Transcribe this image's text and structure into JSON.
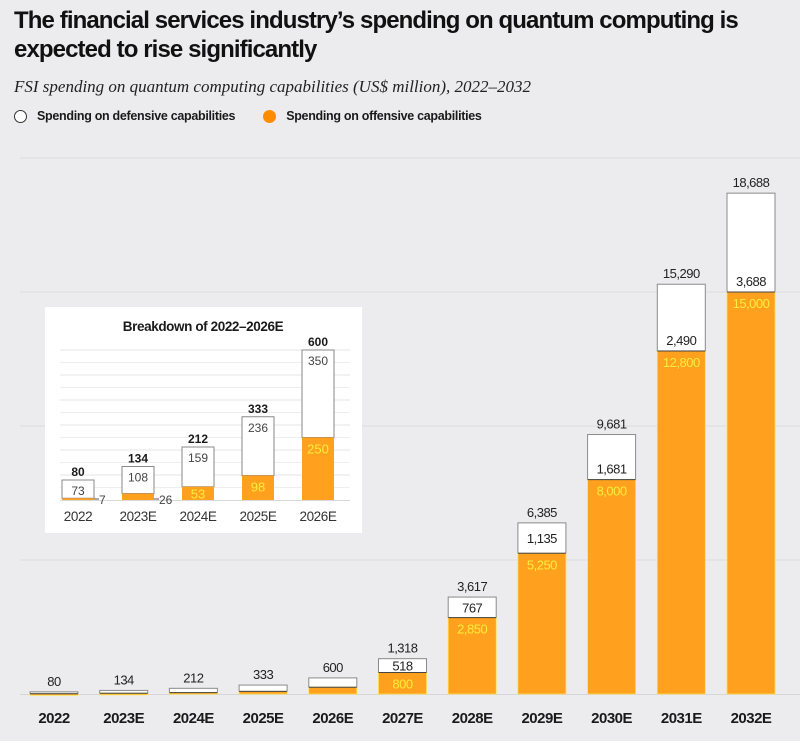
{
  "header": {
    "title": "The financial services industry’s spending on quantum computing is expected to rise significantly",
    "subtitle": "FSI spending on quantum computing capabilities (US$ million), 2022–2032"
  },
  "colors": {
    "offensive": "#ffa01e",
    "defensive": "#ffffff",
    "offensive_label": "#ffee3a",
    "legend_offensive": "#ff8c00"
  },
  "legend": [
    {
      "label": "Spending on defensive capabilities",
      "key": "defensive"
    },
    {
      "label": "Spending on offensive capabilities",
      "key": "offensive"
    }
  ],
  "chart_data": [
    {
      "type": "bar",
      "stacked": true,
      "title": "FSI spending on quantum computing capabilities (US$ million), 2022–2032",
      "xlabel": "",
      "ylabel": "US$ million",
      "ylim": [
        0,
        20000
      ],
      "grid": true,
      "legend_position": "top-left",
      "categories": [
        "2022",
        "2023E",
        "2024E",
        "2025E",
        "2026E",
        "2027E",
        "2028E",
        "2029E",
        "2030E",
        "2031E",
        "2032E"
      ],
      "series": [
        {
          "name": "Spending on offensive capabilities",
          "values": [
            7,
            26,
            53,
            98,
            250,
            800,
            2850,
            5250,
            8000,
            12800,
            15000
          ]
        },
        {
          "name": "Spending on defensive capabilities",
          "values": [
            73,
            108,
            159,
            236,
            350,
            518,
            767,
            1135,
            1681,
            2490,
            3688
          ]
        }
      ],
      "totals": [
        80,
        134,
        212,
        333,
        600,
        1318,
        3617,
        6385,
        9681,
        15290,
        18688
      ],
      "total_labels": [
        "80",
        "134",
        "212",
        "333",
        "600",
        "1,318",
        "3,617",
        "6,385",
        "9,681",
        "15,290",
        "18,688"
      ],
      "segment_labels_shown_from_index": 5,
      "offensive_labels": [
        "7",
        "26",
        "53",
        "98",
        "250",
        "800",
        "2,850",
        "5,250",
        "8,000",
        "12,800",
        "15,000"
      ],
      "defensive_labels": [
        "73",
        "108",
        "159",
        "236",
        "350",
        "518",
        "767",
        "1,135",
        "1,681",
        "2,490",
        "3,688"
      ]
    },
    {
      "type": "bar",
      "stacked": true,
      "title": "Breakdown of 2022–2026E",
      "ylim": [
        0,
        600
      ],
      "grid": true,
      "categories": [
        "2022",
        "2023E",
        "2024E",
        "2025E",
        "2026E"
      ],
      "series": [
        {
          "name": "Spending on offensive capabilities",
          "values": [
            7,
            26,
            53,
            98,
            250
          ]
        },
        {
          "name": "Spending on defensive capabilities",
          "values": [
            73,
            108,
            159,
            236,
            350
          ]
        }
      ],
      "totals": [
        80,
        134,
        212,
        333,
        600
      ],
      "total_labels": [
        "80",
        "134",
        "212",
        "333",
        "600"
      ],
      "offensive_labels": [
        "7",
        "26",
        "53",
        "98",
        "250"
      ],
      "defensive_labels": [
        "73",
        "108",
        "159",
        "236",
        "350"
      ]
    }
  ]
}
